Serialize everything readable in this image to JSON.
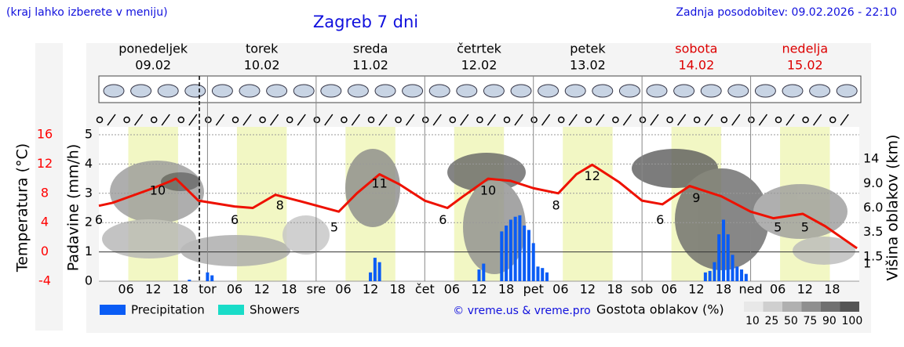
{
  "header": {
    "note": "(kraj lahko izberete v meniju)",
    "title": "Zagreb 7 dni",
    "updated": "Zadnja posodobitev: 09.02.2026 - 22:10",
    "credit": "© vreme.us & vreme.pro"
  },
  "chart_data": {
    "type": "meteogram",
    "days": [
      {
        "name": "ponedeljek",
        "date": "09.02",
        "weekend": false
      },
      {
        "name": "torek",
        "date": "10.02",
        "weekend": false
      },
      {
        "name": "sreda",
        "date": "11.02",
        "weekend": false
      },
      {
        "name": "četrtek",
        "date": "12.02",
        "weekend": false
      },
      {
        "name": "petek",
        "date": "13.02",
        "weekend": false
      },
      {
        "name": "sobota",
        "date": "14.02",
        "weekend": true
      },
      {
        "name": "nedelja",
        "date": "15.02",
        "weekend": true
      }
    ],
    "xlim": [
      0,
      168
    ],
    "xticks": [
      {
        "value": 6,
        "label": "06"
      },
      {
        "value": 12,
        "label": "12"
      },
      {
        "value": 18,
        "label": "18"
      },
      {
        "value": 24,
        "label": "tor"
      },
      {
        "value": 30,
        "label": "06"
      },
      {
        "value": 36,
        "label": "12"
      },
      {
        "value": 42,
        "label": "18"
      },
      {
        "value": 48,
        "label": "sre"
      },
      {
        "value": 54,
        "label": "06"
      },
      {
        "value": 60,
        "label": "12"
      },
      {
        "value": 66,
        "label": "18"
      },
      {
        "value": 72,
        "label": "čet"
      },
      {
        "value": 78,
        "label": "06"
      },
      {
        "value": 84,
        "label": "12"
      },
      {
        "value": 90,
        "label": "18"
      },
      {
        "value": 96,
        "label": "pet"
      },
      {
        "value": 102,
        "label": "06"
      },
      {
        "value": 108,
        "label": "12"
      },
      {
        "value": 114,
        "label": "18"
      },
      {
        "value": 120,
        "label": "sob"
      },
      {
        "value": 126,
        "label": "06"
      },
      {
        "value": 132,
        "label": "12"
      },
      {
        "value": 138,
        "label": "18"
      },
      {
        "value": 144,
        "label": "ned"
      },
      {
        "value": 150,
        "label": "06"
      },
      {
        "value": 156,
        "label": "12"
      },
      {
        "value": 162,
        "label": "18"
      }
    ],
    "daylight": [
      [
        6.5,
        17.5
      ],
      [
        30.5,
        41.5
      ],
      [
        54.5,
        65.5
      ],
      [
        78.5,
        89.5
      ],
      [
        102.5,
        113.5
      ],
      [
        126.5,
        137.5
      ],
      [
        150.5,
        161.5
      ]
    ],
    "now": 22.2,
    "ylabel": "Padavine (mm/h)",
    "ylim": [
      0,
      5
    ],
    "yticks": [
      0,
      1,
      2,
      3,
      4,
      5
    ],
    "tlabel": "Temperatura (°C)",
    "tlim": [
      -4,
      16
    ],
    "tticks": [
      16,
      12,
      8,
      4,
      0,
      -4
    ],
    "tcolor": "#ff0000",
    "y2label": "Višina oblakov (km)",
    "y2ticks": [
      1,
      1.5,
      3.5,
      {
        "value": 6,
        "label": "6.0"
      },
      {
        "value": 9,
        "label": "9.0"
      },
      14
    ],
    "temperature": {
      "color": "#ee1100",
      "x": [
        0,
        3,
        12,
        16,
        17,
        22,
        30,
        34,
        39,
        44,
        53,
        57,
        62,
        66.5,
        72,
        77,
        80.5,
        86,
        91,
        96,
        101.5,
        105.5,
        109,
        115,
        120,
        124.5,
        130.5,
        137.5,
        144,
        149,
        155.5,
        160.5,
        167.5
      ],
      "values": [
        6.3,
        6.7,
        8.7,
        9.7,
        10,
        7,
        6.2,
        6,
        7.8,
        7,
        5.5,
        8,
        10.6,
        9.2,
        7,
        6,
        7.6,
        10,
        9.7,
        8.7,
        8,
        10.6,
        11.9,
        9.5,
        7,
        6.5,
        9,
        7.6,
        5.5,
        4.6,
        5.2,
        3.5,
        0.5
      ],
      "labels": [
        {
          "x": 0,
          "value": 6
        },
        {
          "x": 13,
          "value": 10
        },
        {
          "x": 30,
          "value": 6
        },
        {
          "x": 40,
          "value": 8
        },
        {
          "x": 52,
          "value": 5
        },
        {
          "x": 62,
          "value": 11
        },
        {
          "x": 76,
          "value": 6
        },
        {
          "x": 86,
          "value": 10
        },
        {
          "x": 101,
          "value": 8
        },
        {
          "x": 109,
          "value": 12
        },
        {
          "x": 124,
          "value": 6
        },
        {
          "x": 132,
          "value": 9
        },
        {
          "x": 150,
          "value": 5
        },
        {
          "x": 156,
          "value": 5
        }
      ]
    },
    "precipitation": {
      "name": "Precipitation",
      "color": "#0a5cf5",
      "x": [
        20,
        24,
        25,
        60,
        61,
        62,
        84,
        85,
        89,
        90,
        91,
        92,
        93,
        94,
        95,
        96,
        97,
        98,
        99,
        134,
        135,
        136,
        137,
        138,
        139,
        140,
        141,
        142,
        143
      ],
      "values": [
        0.05,
        0.3,
        0.2,
        0.3,
        0.8,
        0.65,
        0.4,
        0.6,
        1.7,
        1.9,
        2.1,
        2.2,
        2.25,
        1.9,
        1.75,
        1.3,
        0.5,
        0.45,
        0.3,
        0.3,
        0.35,
        0.65,
        1.6,
        2.1,
        1.6,
        0.9,
        0.5,
        0.4,
        0.25
      ]
    },
    "showers": {
      "name": "Showers",
      "color": "#19dcc8",
      "x": [],
      "values": []
    },
    "cloud_scale": {
      "title": "Gostota oblakov (%)",
      "ticks": [
        10,
        25,
        50,
        75,
        90,
        100
      ],
      "colors": [
        "#e8e8e8",
        "#cfcfcf",
        "#b0b0b0",
        "#8f8f8f",
        "#707070",
        "#555555"
      ]
    }
  }
}
